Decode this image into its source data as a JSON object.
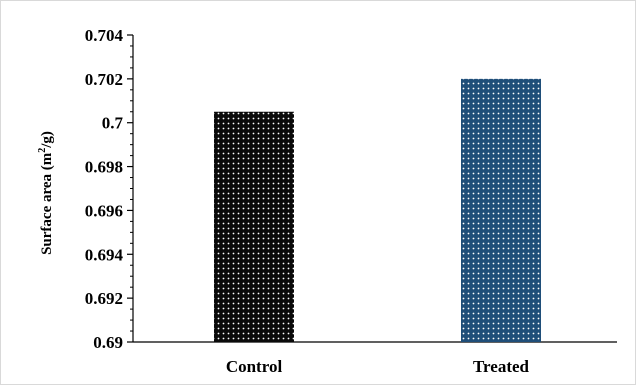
{
  "chart_data": {
    "type": "bar",
    "title": "",
    "xlabel": "",
    "ylabel_main": "Surface area (m",
    "ylabel_sup": "2",
    "ylabel_end": "/g)",
    "categories": [
      "Control",
      "Treated"
    ],
    "values": [
      0.7005,
      0.702
    ],
    "ylim": [
      0.69,
      0.704
    ],
    "yticks": [
      "0.704",
      "0.702",
      "0.7",
      "0.698",
      "0.696",
      "0.694",
      "0.692",
      "0.69"
    ],
    "grid": false,
    "bar_colors": [
      "#0a0a0a",
      "#1f4e79"
    ],
    "bar_dot_colors": [
      "#ffffff",
      "#ffffff"
    ]
  }
}
